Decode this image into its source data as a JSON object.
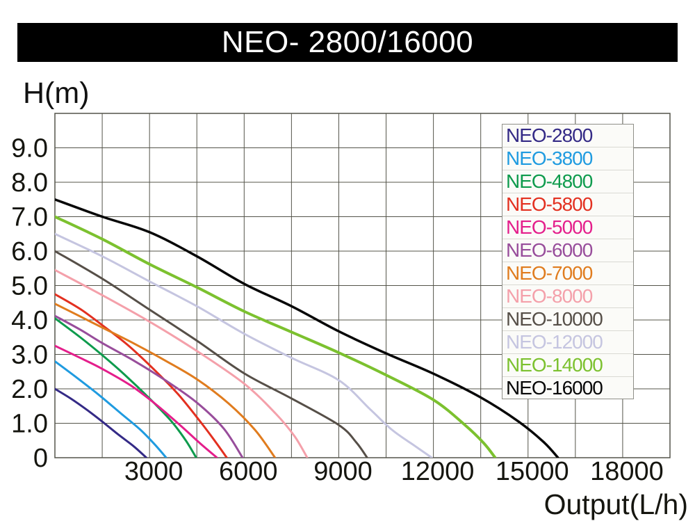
{
  "title": "NEO- 2800/16000",
  "axes": {
    "y_label": "H(m)",
    "x_label": "Output(L/h)"
  },
  "chart_data": {
    "type": "line",
    "title": "NEO- 2800/16000",
    "xlabel": "Output(L/h)",
    "ylabel": "H(m)",
    "xlim": [
      0,
      19500
    ],
    "ylim": [
      0,
      10
    ],
    "x_gridline_step": 1500,
    "y_gridline_step": 1,
    "grid": true,
    "grid_color": "#54544a",
    "legend_position": "top-right",
    "x_ticks": [
      {
        "value": 3000,
        "label": "3000"
      },
      {
        "value": 6000,
        "label": "6000"
      },
      {
        "value": 9000,
        "label": "9000"
      },
      {
        "value": 12000,
        "label": "12000"
      },
      {
        "value": 15000,
        "label": "15000"
      },
      {
        "value": 18000,
        "label": "18000"
      }
    ],
    "y_ticks": [
      {
        "value": 9,
        "label": "9.0"
      },
      {
        "value": 8,
        "label": "8.0"
      },
      {
        "value": 7,
        "label": "7.0"
      },
      {
        "value": 6,
        "label": "6.0"
      },
      {
        "value": 5,
        "label": "5.0"
      },
      {
        "value": 4,
        "label": "4.0"
      },
      {
        "value": 3,
        "label": "3.0"
      },
      {
        "value": 2,
        "label": "2.0"
      },
      {
        "value": 1,
        "label": "1.0"
      },
      {
        "value": 0,
        "label": "0"
      }
    ],
    "series": [
      {
        "name": "NEO-2800",
        "color": "#342a86",
        "width": 3,
        "points": [
          [
            0,
            2.0
          ],
          [
            500,
            1.72
          ],
          [
            1000,
            1.4
          ],
          [
            1500,
            1.05
          ],
          [
            2000,
            0.68
          ],
          [
            2500,
            0.33
          ],
          [
            2900,
            0
          ]
        ]
      },
      {
        "name": "NEO-3800",
        "color": "#1f9be0",
        "width": 3,
        "points": [
          [
            0,
            2.8
          ],
          [
            700,
            2.32
          ],
          [
            1400,
            1.82
          ],
          [
            2100,
            1.28
          ],
          [
            2700,
            0.82
          ],
          [
            3150,
            0.4
          ],
          [
            3530,
            0
          ]
        ]
      },
      {
        "name": "NEO-4800",
        "color": "#0e9b4d",
        "width": 3,
        "points": [
          [
            0,
            4.05
          ],
          [
            800,
            3.5
          ],
          [
            1500,
            2.98
          ],
          [
            2200,
            2.42
          ],
          [
            3000,
            1.72
          ],
          [
            3700,
            1.05
          ],
          [
            4150,
            0.5
          ],
          [
            4480,
            0
          ]
        ]
      },
      {
        "name": "NEO-5800",
        "color": "#e33020",
        "width": 3,
        "points": [
          [
            0,
            4.75
          ],
          [
            800,
            4.32
          ],
          [
            1500,
            3.85
          ],
          [
            2300,
            3.28
          ],
          [
            3100,
            2.6
          ],
          [
            3900,
            1.85
          ],
          [
            4650,
            1.0
          ],
          [
            5100,
            0.45
          ],
          [
            5450,
            0
          ]
        ]
      },
      {
        "name": "NEO-5000",
        "color": "#e41e8b",
        "width": 3,
        "points": [
          [
            0,
            3.25
          ],
          [
            800,
            2.9
          ],
          [
            1500,
            2.58
          ],
          [
            2400,
            2.1
          ],
          [
            3200,
            1.55
          ],
          [
            4000,
            0.92
          ],
          [
            4600,
            0.42
          ],
          [
            5140,
            0
          ]
        ]
      },
      {
        "name": "NEO-6000",
        "color": "#984d9b",
        "width": 3,
        "points": [
          [
            0,
            4.12
          ],
          [
            800,
            3.72
          ],
          [
            1500,
            3.33
          ],
          [
            2500,
            2.82
          ],
          [
            3500,
            2.25
          ],
          [
            4500,
            1.6
          ],
          [
            5350,
            0.85
          ],
          [
            5950,
            0
          ]
        ]
      },
      {
        "name": "NEO-7000",
        "color": "#e07c1e",
        "width": 3,
        "points": [
          [
            0,
            4.47
          ],
          [
            700,
            4.15
          ],
          [
            1500,
            3.78
          ],
          [
            2500,
            3.32
          ],
          [
            3500,
            2.82
          ],
          [
            4500,
            2.28
          ],
          [
            5500,
            1.58
          ],
          [
            6350,
            0.8
          ],
          [
            6980,
            0
          ]
        ]
      },
      {
        "name": "NEO-8000",
        "color": "#f4a0aa",
        "width": 3,
        "points": [
          [
            0,
            5.45
          ],
          [
            1500,
            4.72
          ],
          [
            3000,
            3.95
          ],
          [
            4500,
            3.1
          ],
          [
            6000,
            2.15
          ],
          [
            7000,
            1.28
          ],
          [
            7600,
            0.62
          ],
          [
            8000,
            0
          ]
        ]
      },
      {
        "name": "NEO-10000",
        "color": "#564f48",
        "width": 3,
        "points": [
          [
            0,
            6.0
          ],
          [
            1500,
            5.2
          ],
          [
            3000,
            4.3
          ],
          [
            4500,
            3.4
          ],
          [
            6000,
            2.45
          ],
          [
            7500,
            1.72
          ],
          [
            9000,
            0.95
          ],
          [
            9550,
            0.45
          ],
          [
            9900,
            0
          ]
        ]
      },
      {
        "name": "NEO-12000",
        "color": "#c5c5e0",
        "width": 3,
        "points": [
          [
            0,
            6.5
          ],
          [
            1500,
            5.85
          ],
          [
            3000,
            5.12
          ],
          [
            4500,
            4.4
          ],
          [
            6000,
            3.6
          ],
          [
            7500,
            2.9
          ],
          [
            9000,
            2.25
          ],
          [
            10000,
            1.4
          ],
          [
            10700,
            0.8
          ],
          [
            11400,
            0.35
          ],
          [
            11950,
            0
          ]
        ]
      },
      {
        "name": "NEO-14000",
        "color": "#7cc12f",
        "width": 4,
        "points": [
          [
            0,
            7.0
          ],
          [
            1500,
            6.35
          ],
          [
            3000,
            5.62
          ],
          [
            4500,
            4.95
          ],
          [
            6000,
            4.25
          ],
          [
            7500,
            3.65
          ],
          [
            9000,
            3.05
          ],
          [
            10500,
            2.4
          ],
          [
            12000,
            1.68
          ],
          [
            13000,
            0.95
          ],
          [
            13600,
            0.42
          ],
          [
            13960,
            0
          ]
        ]
      },
      {
        "name": "NEO-16000",
        "color": "#070707",
        "width": 3.5,
        "points": [
          [
            0,
            7.5
          ],
          [
            1500,
            7.0
          ],
          [
            3000,
            6.55
          ],
          [
            4500,
            5.85
          ],
          [
            6000,
            5.05
          ],
          [
            7500,
            4.4
          ],
          [
            9000,
            3.67
          ],
          [
            10500,
            3.03
          ],
          [
            12000,
            2.44
          ],
          [
            13500,
            1.75
          ],
          [
            14700,
            1.05
          ],
          [
            15500,
            0.45
          ],
          [
            15950,
            0
          ]
        ]
      }
    ]
  }
}
